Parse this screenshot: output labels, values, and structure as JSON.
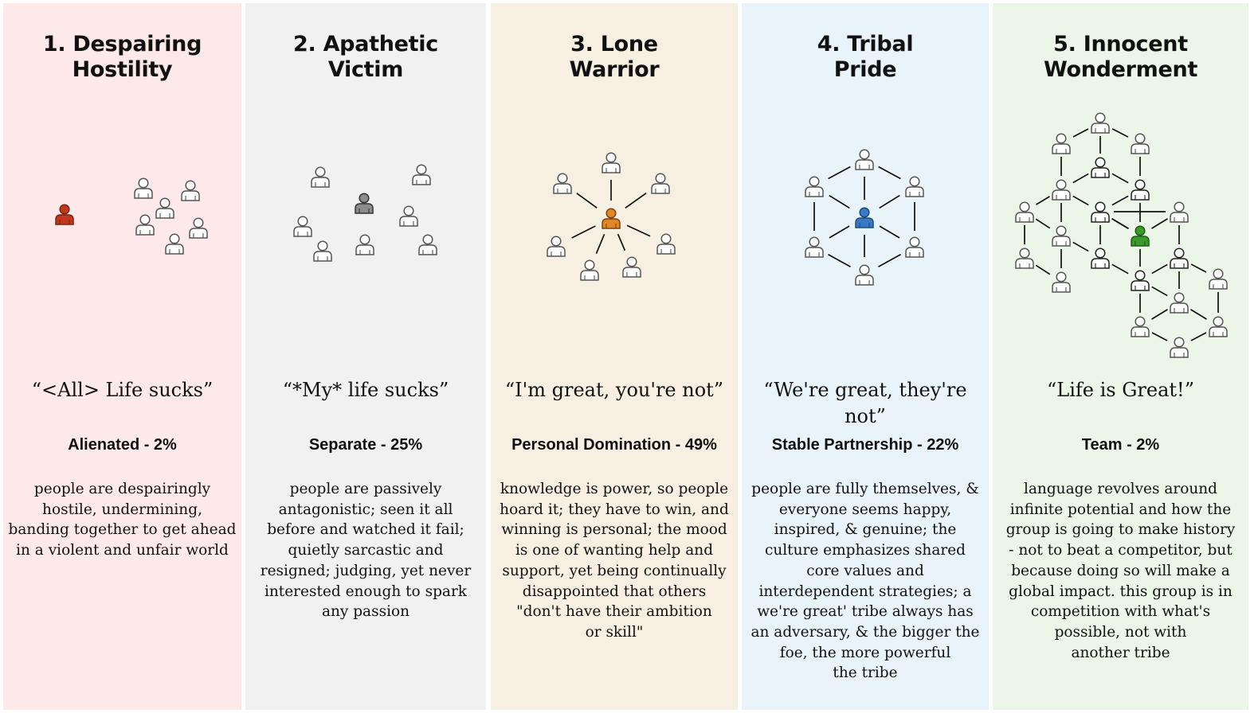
{
  "columns": [
    {
      "id": "c1",
      "bg": "#fde9ea",
      "accent": "#c0391f",
      "title": [
        "1. Despairing",
        "Hostility"
      ],
      "quote": "“<All> Life sucks”",
      "label": "Alienated - 2%",
      "percent": 2,
      "description": [
        "people are despairingly",
        "hostile, undermining,",
        "banding together to get ahead",
        "in a violent and unfair world"
      ]
    },
    {
      "id": "c2",
      "bg": "#f1f1f1",
      "accent": "#8c8c8c",
      "title": [
        "2. Apathetic",
        "Victim"
      ],
      "quote": "“*My* life sucks”",
      "label": "Separate - 25%",
      "percent": 25,
      "description": [
        "people are passively",
        "antagonistic; seen it all",
        "before and watched it fail;",
        "quietly sarcastic and",
        "resigned; judging, yet never",
        "interested enough to spark",
        "any passion"
      ]
    },
    {
      "id": "c3",
      "bg": "#f7efe2",
      "accent": "#e0872a",
      "title": [
        "3. Lone",
        "Warrior"
      ],
      "quote": "“I'm great, you're not”",
      "label": "Personal Domination - 49%",
      "percent": 49,
      "description": [
        "knowledge is power, so people",
        "hoard it; they have to win, and",
        "winning is personal; the mood",
        "is one of wanting help and",
        "support, yet being continually",
        "disappointed that others",
        "\"don't have their ambition",
        "or skill\""
      ]
    },
    {
      "id": "c4",
      "bg": "#e9f3fa",
      "accent": "#3a79c4",
      "title": [
        "4. Tribal",
        "Pride"
      ],
      "quote": "“We're great, they're not”",
      "label": "Stable Partnership - 22%",
      "percent": 22,
      "description": [
        "people are fully themselves, &",
        "everyone seems happy,",
        "inspired, & genuine; the",
        "culture emphasizes shared",
        "core values and",
        "interdependent strategies; a",
        "we're great' tribe always has",
        "an adversary, & the bigger the",
        "foe, the more powerful",
        "the tribe"
      ]
    },
    {
      "id": "c5",
      "bg": "#ebf5e8",
      "accent": "#3b9a2b",
      "title": [
        "5. Innocent",
        "Wonderment"
      ],
      "quote": "“Life is Great!”",
      "label": "Team - 2%",
      "percent": 2,
      "description": [
        "language revolves around",
        "infinite potential and how the",
        "group is going to make history",
        "- not to beat a competitor, but",
        "because doing so will make a",
        "global impact. this group is in",
        "competition with what's",
        "possible, not with",
        "another tribe"
      ]
    }
  ]
}
